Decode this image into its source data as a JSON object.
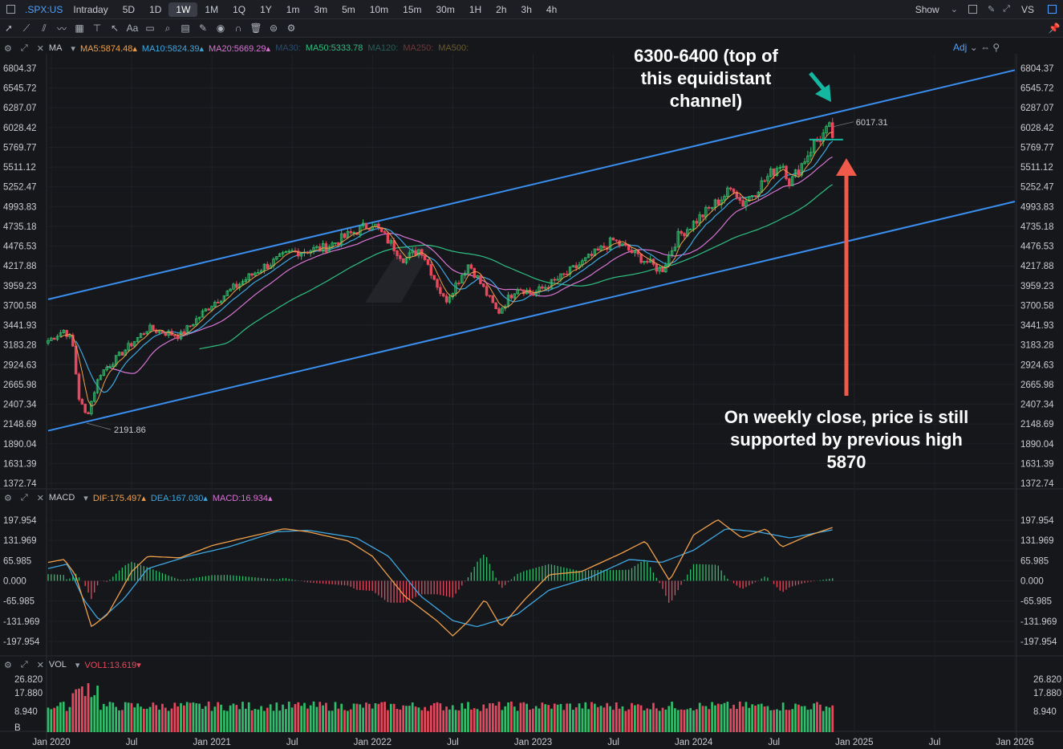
{
  "topbar": {
    "ticker": ".SPX:US",
    "tabs": [
      "Intraday",
      "5D",
      "1D",
      "1W",
      "1M",
      "1Q",
      "1Y",
      "1m",
      "3m",
      "5m",
      "10m",
      "15m",
      "30m",
      "1H",
      "2h",
      "3h",
      "4h"
    ],
    "active_tab": "1W",
    "show_label": "Show",
    "vs_label": "VS"
  },
  "ma_legend": {
    "name": "MA",
    "items": [
      {
        "label": "MA5:5874.48",
        "color": "#f0a04b"
      },
      {
        "label": "MA10:5824.39",
        "color": "#3fa7e0"
      },
      {
        "label": "MA20:5669.29",
        "color": "#d775d4"
      },
      {
        "label": "MA30:",
        "color": "#2c4b6b"
      },
      {
        "label": "MA50:5333.78",
        "color": "#2fbf82"
      },
      {
        "label": "MA120:",
        "color": "#2a5e57"
      },
      {
        "label": "MA250:",
        "color": "#6b3a3a"
      },
      {
        "label": "MA500:",
        "color": "#6b5a2a"
      }
    ],
    "adj": "Adj"
  },
  "macd_legend": {
    "name": "MACD",
    "items": [
      {
        "label": "DIF:175.497",
        "color": "#f0a04b"
      },
      {
        "label": "DEA:167.030",
        "color": "#3fa7e0"
      },
      {
        "label": "MACD:16.934",
        "color": "#d775d4"
      }
    ]
  },
  "vol_legend": {
    "name": "VOL",
    "items": [
      {
        "label": "VOL1:13.619",
        "color": "#e8485e"
      }
    ]
  },
  "colors": {
    "up": "#2fbf6b",
    "down": "#e8485e",
    "channel": "#3a8ff0",
    "ma50": "#2fbf82",
    "arrow_red": "#f05a4a",
    "arrow_teal": "#14b8a0"
  },
  "chart_data": {
    "type": "candlestick",
    "price_axis": {
      "ticks": [
        "6804.37",
        "6545.72",
        "6287.07",
        "6028.42",
        "5769.77",
        "5511.12",
        "5252.47",
        "4993.83",
        "4735.18",
        "4476.53",
        "4217.88",
        "3959.23",
        "3700.58",
        "3441.93",
        "3183.28",
        "2924.63",
        "2665.98",
        "2407.34",
        "2148.69",
        "1890.04",
        "1631.39",
        "1372.74"
      ]
    },
    "macd_axis": {
      "ticks": [
        "197.954",
        "131.969",
        "65.985",
        "0.000",
        "-65.985",
        "-131.969",
        "-197.954"
      ]
    },
    "vol_axis": {
      "ticks": [
        "26.820",
        "17.880",
        "8.940",
        "B"
      ]
    },
    "time_axis": {
      "ticks": [
        "Jan 2020",
        "Jul",
        "Jan 2021",
        "Jul",
        "Jan 2022",
        "Jul",
        "Jan 2023",
        "Jul",
        "Jan 2024",
        "Jul",
        "Jan 2025",
        "Jul",
        "Jan 2026"
      ],
      "tick_times": [
        2020.0,
        2020.5,
        2021.0,
        2021.5,
        2022.0,
        2022.5,
        2023.0,
        2023.5,
        2024.0,
        2024.5,
        2025.0,
        2025.5,
        2026.0
      ]
    },
    "x_range": [
      2019.98,
      2026.0
    ],
    "price_range": [
      1372.74,
      6804.37
    ],
    "price_key_points": [
      [
        2019.98,
        3240
      ],
      [
        2020.08,
        3380
      ],
      [
        2020.13,
        3230
      ],
      [
        2020.17,
        2500
      ],
      [
        2020.22,
        2240
      ],
      [
        2020.3,
        2800
      ],
      [
        2020.45,
        3100
      ],
      [
        2020.6,
        3400
      ],
      [
        2020.8,
        3300
      ],
      [
        2021.0,
        3720
      ],
      [
        2021.3,
        4180
      ],
      [
        2021.5,
        4400
      ],
      [
        2021.7,
        4450
      ],
      [
        2021.92,
        4700
      ],
      [
        2022.0,
        4780
      ],
      [
        2022.2,
        4300
      ],
      [
        2022.3,
        4450
      ],
      [
        2022.45,
        3750
      ],
      [
        2022.6,
        4250
      ],
      [
        2022.78,
        3600
      ],
      [
        2022.9,
        3950
      ],
      [
        2023.0,
        3850
      ],
      [
        2023.2,
        4100
      ],
      [
        2023.5,
        4550
      ],
      [
        2023.8,
        4150
      ],
      [
        2023.9,
        4600
      ],
      [
        2024.0,
        4780
      ],
      [
        2024.25,
        5250
      ],
      [
        2024.3,
        5020
      ],
      [
        2024.55,
        5580
      ],
      [
        2024.6,
        5300
      ],
      [
        2024.75,
        5820
      ],
      [
        2024.85,
        6020
      ],
      [
        2024.87,
        5880
      ]
    ],
    "channel_upper": [
      [
        2019.98,
        3780
      ],
      [
        2026.0,
        6780
      ]
    ],
    "channel_lower": [
      [
        2019.98,
        2060
      ],
      [
        2026.0,
        5060
      ]
    ],
    "last_high": "6017.31",
    "covid_low": "2191.86",
    "support_level": 5870,
    "support_span": [
      2024.72,
      2024.93
    ],
    "annotations": [
      {
        "text": [
          "6300-6400 (top of",
          "this equidistant",
          "channel)"
        ]
      },
      {
        "text": [
          "On weekly close, price is still",
          "supported by previous high",
          "5870"
        ]
      }
    ],
    "macd_range": [
      -210,
      210
    ],
    "macd_dif_points": [
      [
        2019.98,
        60
      ],
      [
        2020.08,
        70
      ],
      [
        2020.15,
        20
      ],
      [
        2020.25,
        -150
      ],
      [
        2020.35,
        -110
      ],
      [
        2020.5,
        30
      ],
      [
        2020.6,
        80
      ],
      [
        2020.8,
        75
      ],
      [
        2021.0,
        115
      ],
      [
        2021.2,
        140
      ],
      [
        2021.45,
        170
      ],
      [
        2021.6,
        160
      ],
      [
        2021.85,
        130
      ],
      [
        2022.0,
        80
      ],
      [
        2022.2,
        -50
      ],
      [
        2022.4,
        -130
      ],
      [
        2022.5,
        -180
      ],
      [
        2022.6,
        -130
      ],
      [
        2022.7,
        -60
      ],
      [
        2022.8,
        -150
      ],
      [
        2022.95,
        -60
      ],
      [
        2023.1,
        20
      ],
      [
        2023.3,
        30
      ],
      [
        2023.55,
        90
      ],
      [
        2023.7,
        130
      ],
      [
        2023.85,
        0
      ],
      [
        2024.0,
        150
      ],
      [
        2024.15,
        200
      ],
      [
        2024.3,
        140
      ],
      [
        2024.45,
        170
      ],
      [
        2024.55,
        110
      ],
      [
        2024.7,
        145
      ],
      [
        2024.87,
        175
      ]
    ],
    "macd_dea_points": [
      [
        2019.98,
        40
      ],
      [
        2020.1,
        55
      ],
      [
        2020.2,
        -60
      ],
      [
        2020.3,
        -130
      ],
      [
        2020.45,
        -60
      ],
      [
        2020.6,
        40
      ],
      [
        2020.85,
        80
      ],
      [
        2021.1,
        110
      ],
      [
        2021.4,
        160
      ],
      [
        2021.6,
        165
      ],
      [
        2021.9,
        140
      ],
      [
        2022.1,
        80
      ],
      [
        2022.3,
        -50
      ],
      [
        2022.5,
        -130
      ],
      [
        2022.65,
        -150
      ],
      [
        2022.9,
        -110
      ],
      [
        2023.1,
        -30
      ],
      [
        2023.35,
        10
      ],
      [
        2023.6,
        70
      ],
      [
        2023.8,
        60
      ],
      [
        2024.0,
        100
      ],
      [
        2024.2,
        170
      ],
      [
        2024.4,
        160
      ],
      [
        2024.6,
        140
      ],
      [
        2024.87,
        167
      ]
    ],
    "vol_range": [
      0,
      28
    ]
  }
}
